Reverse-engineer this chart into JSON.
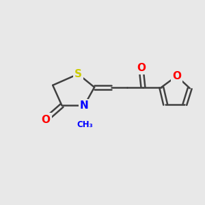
{
  "bg_color": "#e8e8e8",
  "atom_colors": {
    "S": "#cccc00",
    "N": "#0000ff",
    "O_left": "#ff0000",
    "O_furan": "#ff0000",
    "O_mid": "#ff0000"
  },
  "bond_color": "#404040",
  "bond_width": 1.8,
  "figsize": [
    3.0,
    3.0
  ],
  "dpi": 100,
  "xlim": [
    0,
    10
  ],
  "ylim": [
    0,
    10
  ]
}
